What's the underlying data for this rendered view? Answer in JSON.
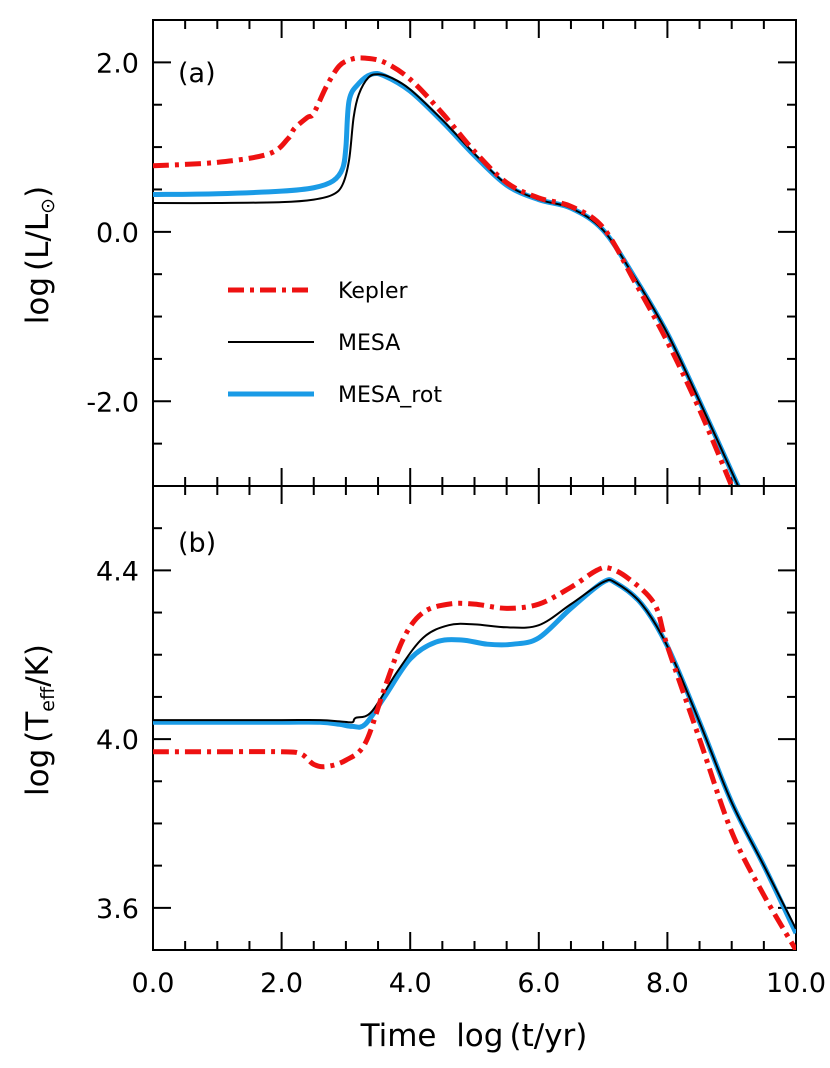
{
  "chart_data": [
    {
      "type": "line",
      "panel_label": "(a)",
      "ylabel": "log (L/L☉)",
      "ylabel_parts": {
        "prefix": "log",
        "open": "(",
        "main": "L/L",
        "sub": "⊙",
        "close": ")"
      },
      "xlim": [
        0,
        10
      ],
      "ylim": [
        -3.0,
        2.5
      ],
      "yticks": [
        2.0,
        0.0,
        -2.0
      ],
      "ytick_labels": [
        "2.0",
        "0.0",
        "-2.0"
      ],
      "legend": {
        "placement": "center-left",
        "entries": [
          "Kepler",
          "MESA",
          "MESA_rot"
        ]
      },
      "series": [
        {
          "name": "Kepler",
          "color": "#ee1111",
          "style": "dash-dot",
          "points": [
            [
              0.0,
              0.78
            ],
            [
              1.0,
              0.82
            ],
            [
              1.8,
              0.92
            ],
            [
              2.1,
              1.1
            ],
            [
              2.2,
              1.22
            ],
            [
              2.4,
              1.35
            ],
            [
              2.5,
              1.4
            ],
            [
              2.7,
              1.72
            ],
            [
              2.9,
              1.96
            ],
            [
              3.1,
              2.04
            ],
            [
              3.3,
              2.05
            ],
            [
              3.6,
              2.0
            ],
            [
              4.0,
              1.8
            ],
            [
              4.5,
              1.4
            ],
            [
              5.0,
              0.95
            ],
            [
              5.5,
              0.58
            ],
            [
              6.0,
              0.4
            ],
            [
              6.5,
              0.3
            ],
            [
              7.0,
              0.05
            ],
            [
              7.5,
              -0.6
            ],
            [
              8.0,
              -1.3
            ],
            [
              8.5,
              -2.1
            ],
            [
              9.0,
              -3.0
            ]
          ]
        },
        {
          "name": "MESA",
          "color": "#000000",
          "style": "solid",
          "points": [
            [
              0.0,
              0.34
            ],
            [
              1.0,
              0.34
            ],
            [
              2.0,
              0.35
            ],
            [
              2.5,
              0.38
            ],
            [
              2.8,
              0.44
            ],
            [
              2.95,
              0.56
            ],
            [
              3.05,
              0.85
            ],
            [
              3.12,
              1.35
            ],
            [
              3.2,
              1.62
            ],
            [
              3.35,
              1.82
            ],
            [
              3.5,
              1.86
            ],
            [
              3.7,
              1.82
            ],
            [
              4.0,
              1.68
            ],
            [
              4.5,
              1.32
            ],
            [
              5.0,
              0.92
            ],
            [
              5.5,
              0.56
            ],
            [
              6.0,
              0.38
            ],
            [
              6.5,
              0.28
            ],
            [
              7.0,
              0.02
            ],
            [
              7.5,
              -0.55
            ],
            [
              8.0,
              -1.2
            ],
            [
              8.5,
              -2.0
            ],
            [
              9.1,
              -3.0
            ]
          ]
        },
        {
          "name": "MESA_rot",
          "color": "#1a9be6",
          "style": "solid",
          "points": [
            [
              0.0,
              0.44
            ],
            [
              1.0,
              0.45
            ],
            [
              2.0,
              0.48
            ],
            [
              2.5,
              0.52
            ],
            [
              2.8,
              0.6
            ],
            [
              2.95,
              0.75
            ],
            [
              3.0,
              1.0
            ],
            [
              3.05,
              1.55
            ],
            [
              3.2,
              1.75
            ],
            [
              3.4,
              1.86
            ],
            [
              3.6,
              1.84
            ],
            [
              4.0,
              1.66
            ],
            [
              4.5,
              1.3
            ],
            [
              5.0,
              0.9
            ],
            [
              5.5,
              0.55
            ],
            [
              6.0,
              0.38
            ],
            [
              6.5,
              0.28
            ],
            [
              7.0,
              0.02
            ],
            [
              7.5,
              -0.55
            ],
            [
              8.0,
              -1.2
            ],
            [
              8.5,
              -2.0
            ],
            [
              9.1,
              -3.0
            ]
          ]
        }
      ]
    },
    {
      "type": "line",
      "panel_label": "(b)",
      "xlabel": "Time  log (t/yr)",
      "xlabel_parts": {
        "prefix": "Time  log",
        "main": "(t/yr)"
      },
      "ylabel": "log (Teff/K)",
      "ylabel_parts": {
        "prefix": "log",
        "open": "(",
        "main": "T",
        "sub": "eff",
        "tail": "/K",
        "close": ")"
      },
      "xlim": [
        0,
        10
      ],
      "ylim": [
        3.5,
        4.6
      ],
      "xticks": [
        0.0,
        2.0,
        4.0,
        6.0,
        8.0,
        10.0
      ],
      "xtick_labels": [
        "0.0",
        "2.0",
        "4.0",
        "6.0",
        "8.0",
        "10.0"
      ],
      "yticks": [
        4.4,
        4.0,
        3.6
      ],
      "ytick_labels": [
        "4.4",
        "4.0",
        "3.6"
      ],
      "series": [
        {
          "name": "Kepler",
          "color": "#ee1111",
          "style": "dash-dot",
          "points": [
            [
              0.0,
              3.97
            ],
            [
              1.0,
              3.97
            ],
            [
              2.0,
              3.97
            ],
            [
              2.3,
              3.965
            ],
            [
              2.5,
              3.94
            ],
            [
              2.7,
              3.935
            ],
            [
              3.0,
              3.95
            ],
            [
              3.3,
              3.99
            ],
            [
              3.6,
              4.12
            ],
            [
              3.9,
              4.24
            ],
            [
              4.2,
              4.3
            ],
            [
              4.6,
              4.32
            ],
            [
              5.0,
              4.32
            ],
            [
              5.5,
              4.31
            ],
            [
              6.0,
              4.32
            ],
            [
              6.5,
              4.36
            ],
            [
              6.9,
              4.4
            ],
            [
              7.1,
              4.405
            ],
            [
              7.4,
              4.38
            ],
            [
              7.8,
              4.32
            ],
            [
              8.0,
              4.22
            ],
            [
              8.5,
              4.0
            ],
            [
              9.0,
              3.78
            ],
            [
              9.5,
              3.63
            ],
            [
              10.0,
              3.5
            ]
          ]
        },
        {
          "name": "MESA",
          "color": "#000000",
          "style": "solid",
          "points": [
            [
              0.0,
              4.045
            ],
            [
              1.0,
              4.045
            ],
            [
              2.0,
              4.045
            ],
            [
              2.6,
              4.045
            ],
            [
              2.9,
              4.042
            ],
            [
              3.1,
              4.04
            ],
            [
              3.15,
              4.05
            ],
            [
              3.4,
              4.065
            ],
            [
              3.8,
              4.16
            ],
            [
              4.2,
              4.24
            ],
            [
              4.6,
              4.27
            ],
            [
              5.0,
              4.272
            ],
            [
              5.5,
              4.265
            ],
            [
              6.0,
              4.27
            ],
            [
              6.5,
              4.32
            ],
            [
              7.0,
              4.372
            ],
            [
              7.2,
              4.37
            ],
            [
              7.6,
              4.32
            ],
            [
              8.0,
              4.22
            ],
            [
              8.5,
              4.04
            ],
            [
              9.0,
              3.85
            ],
            [
              9.5,
              3.7
            ],
            [
              10.0,
              3.55
            ]
          ]
        },
        {
          "name": "MESA_rot",
          "color": "#1a9be6",
          "style": "solid",
          "points": [
            [
              0.0,
              4.04
            ],
            [
              1.0,
              4.04
            ],
            [
              2.0,
              4.04
            ],
            [
              2.6,
              4.04
            ],
            [
              2.9,
              4.035
            ],
            [
              3.1,
              4.03
            ],
            [
              3.3,
              4.035
            ],
            [
              3.6,
              4.1
            ],
            [
              4.0,
              4.19
            ],
            [
              4.4,
              4.23
            ],
            [
              4.8,
              4.235
            ],
            [
              5.2,
              4.225
            ],
            [
              5.6,
              4.225
            ],
            [
              6.0,
              4.24
            ],
            [
              6.5,
              4.31
            ],
            [
              7.0,
              4.372
            ],
            [
              7.2,
              4.37
            ],
            [
              7.6,
              4.32
            ],
            [
              8.0,
              4.22
            ],
            [
              8.5,
              4.04
            ],
            [
              9.0,
              3.85
            ],
            [
              9.5,
              3.7
            ],
            [
              10.0,
              3.54
            ]
          ]
        }
      ]
    }
  ]
}
